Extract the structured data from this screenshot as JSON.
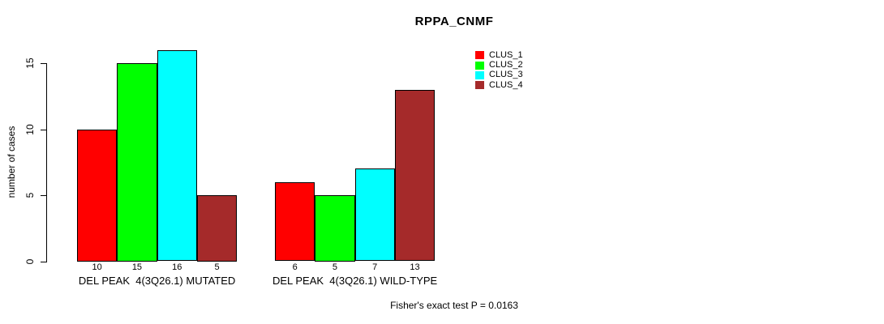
{
  "chart_data": {
    "type": "bar",
    "title": "RPPA_CNMF",
    "ylabel": "number of cases",
    "xlabel": "",
    "ylim": [
      0,
      16.8
    ],
    "yticks": [
      0,
      5,
      10,
      15
    ],
    "grid": false,
    "legend_position": "top-right",
    "categories": [
      "DEL PEAK  4(3Q26.1) MUTATED",
      "DEL PEAK  4(3Q26.1) WILD-TYPE"
    ],
    "series": [
      {
        "name": "CLUS_1",
        "color": "#ff0000",
        "values": [
          10,
          6
        ]
      },
      {
        "name": "CLUS_2",
        "color": "#00ff00",
        "values": [
          15,
          5
        ]
      },
      {
        "name": "CLUS_3",
        "color": "#00ffff",
        "values": [
          16,
          7
        ]
      },
      {
        "name": "CLUS_4",
        "color": "#a52a2a",
        "values": [
          5,
          13
        ]
      }
    ],
    "bar_value_labels": [
      [
        10,
        15,
        16,
        5
      ],
      [
        6,
        5,
        7,
        13
      ]
    ],
    "annotation": "Fisher's exact test P = 0.0163"
  }
}
